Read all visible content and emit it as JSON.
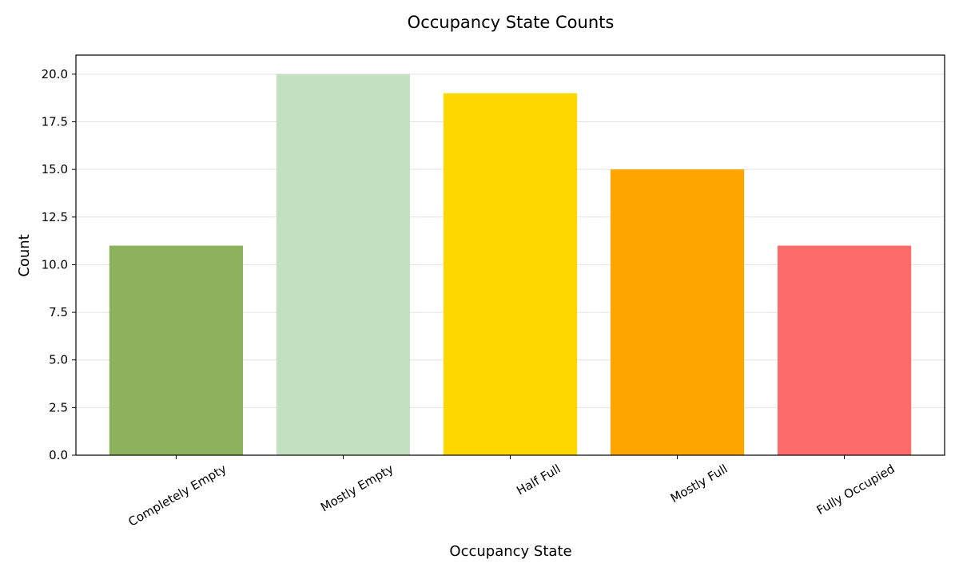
{
  "chart_data": {
    "type": "bar",
    "title": "Occupancy State Counts",
    "xlabel": "Occupancy State",
    "ylabel": "Count",
    "categories": [
      "Completely Empty",
      "Mostly Empty",
      "Half Full",
      "Mostly Full",
      "Fully Occupied"
    ],
    "values": [
      11,
      20,
      19,
      15,
      11
    ],
    "colors": [
      "#8db15c",
      "#c3e1c1",
      "#fed700",
      "#fea500",
      "#fe6b6b"
    ],
    "ylim": [
      0,
      21
    ],
    "yticks": [
      "0.0",
      "2.5",
      "5.0",
      "7.5",
      "10.0",
      "12.5",
      "15.0",
      "17.5",
      "20.0"
    ],
    "grid": "y",
    "legend": "none"
  }
}
